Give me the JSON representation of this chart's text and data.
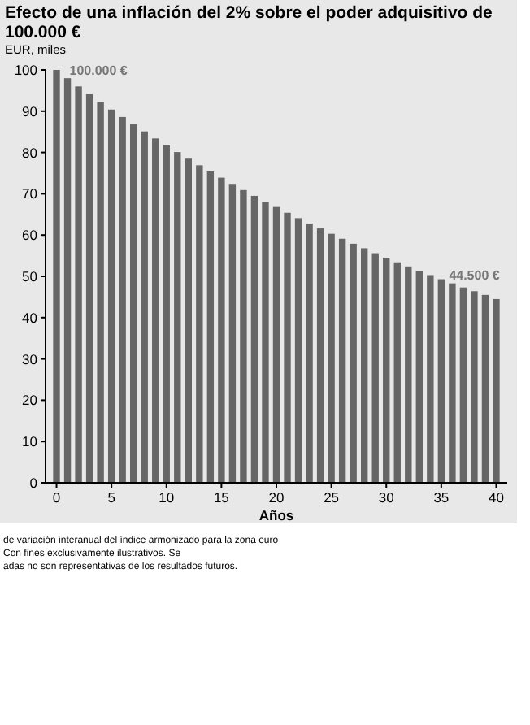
{
  "chart_data": {
    "type": "bar",
    "title": "Efecto de una inflación del 2% sobre el poder adquisitivo de 100.000 €",
    "subtitle": "EUR, miles",
    "xlabel": "Años",
    "x": [
      0,
      1,
      2,
      3,
      4,
      5,
      6,
      7,
      8,
      9,
      10,
      11,
      12,
      13,
      14,
      15,
      16,
      17,
      18,
      19,
      20,
      21,
      22,
      23,
      24,
      25,
      26,
      27,
      28,
      29,
      30,
      31,
      32,
      33,
      34,
      35,
      36,
      37,
      38,
      39,
      40
    ],
    "values": [
      100,
      98,
      96.0,
      94.1,
      92.2,
      90.4,
      88.6,
      86.8,
      85.1,
      83.4,
      81.7,
      80.1,
      78.5,
      76.9,
      75.4,
      73.9,
      72.4,
      70.9,
      69.5,
      68.1,
      66.8,
      65.4,
      64.1,
      62.8,
      61.6,
      60.3,
      59.1,
      57.9,
      56.8,
      55.6,
      54.5,
      53.4,
      52.4,
      51.3,
      50.3,
      49.3,
      48.3,
      47.3,
      46.4,
      45.5,
      44.5
    ],
    "color": "#666666",
    "xlim": [
      -1,
      41
    ],
    "xticks": [
      0,
      5,
      10,
      15,
      20,
      25,
      30,
      35,
      40
    ],
    "ylim": [
      0,
      100
    ],
    "yticks": [
      0,
      10,
      20,
      30,
      40,
      50,
      60,
      70,
      80,
      90,
      100
    ],
    "grid": false,
    "annotations": [
      {
        "text": "100.000 €",
        "x": 0,
        "y": 100
      },
      {
        "text": "44.500 €",
        "x": 40,
        "y": 44.5
      },
      "de variación interanual del índice armonizado para la zona euro",
      "Con fines exclusivamente ilustrativos. Se",
      "adas no son representativas de los resultados futuros."
    ]
  }
}
